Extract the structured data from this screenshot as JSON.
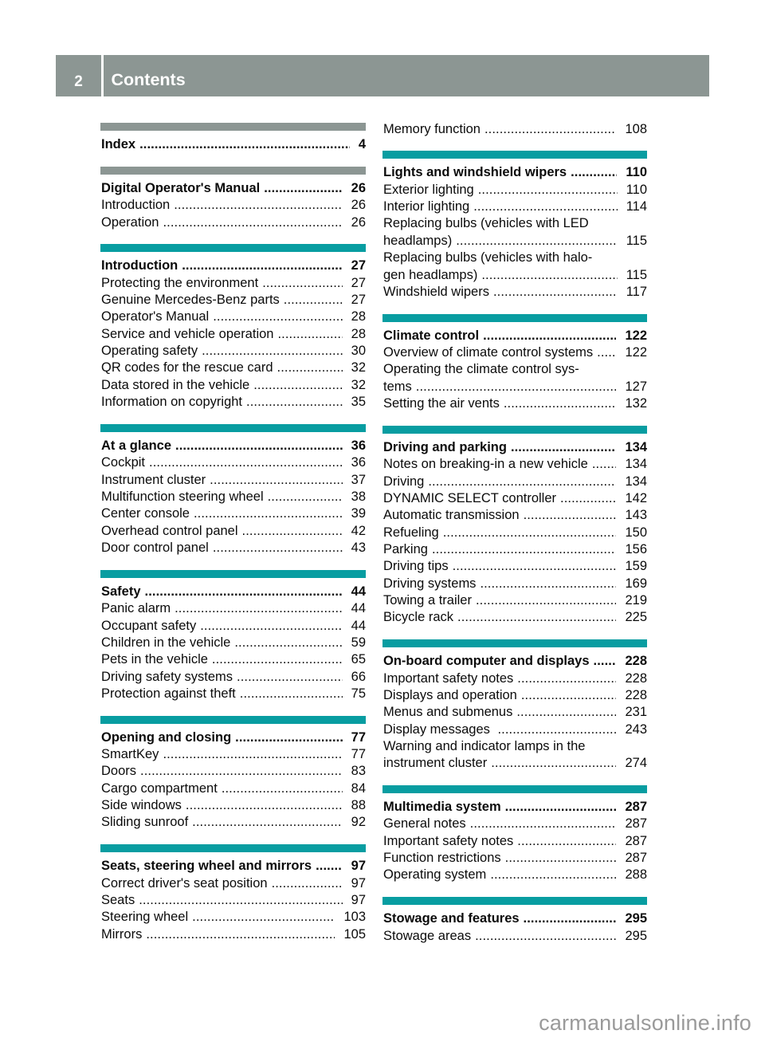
{
  "header": {
    "page_number": "2",
    "title": "Contents"
  },
  "watermark": {
    "text": "carmanualsonline.info"
  },
  "colors": {
    "bar_teal": "#089da1",
    "bar_gray": "#8c9693",
    "header_text": "#ffffff",
    "body_text": "#0b0b0b",
    "watermark_text": "#9a9a9a",
    "page_background": "#ffffff"
  },
  "toc": {
    "left_column": {
      "sections": [
        {
          "bar": "gray",
          "entries": [
            {
              "label": "Index",
              "page": "4",
              "bold": true
            }
          ]
        },
        {
          "bar": "gray",
          "entries": [
            {
              "label": "Digital Operator's Manual",
              "page": "26",
              "bold": true
            },
            {
              "label": "Introduction",
              "page": "26"
            },
            {
              "label": "Operation",
              "page": "26"
            }
          ]
        },
        {
          "bar": "teal",
          "entries": [
            {
              "label": "Introduction",
              "page": "27",
              "bold": true
            },
            {
              "label": "Protecting the environment",
              "page": "27"
            },
            {
              "label": "Genuine Mercedes-Benz parts",
              "page": "27"
            },
            {
              "label": "Operator's Manual",
              "page": "28"
            },
            {
              "label": "Service and vehicle operation",
              "page": "28"
            },
            {
              "label": "Operating safety",
              "page": "30"
            },
            {
              "label": "QR codes for the rescue card",
              "page": "32"
            },
            {
              "label": "Data stored in the vehicle",
              "page": "32"
            },
            {
              "label": "Information on copyright",
              "page": "35"
            }
          ]
        },
        {
          "bar": "teal",
          "entries": [
            {
              "label": "At a glance",
              "page": "36",
              "bold": true
            },
            {
              "label": "Cockpit",
              "page": "36"
            },
            {
              "label": "Instrument cluster",
              "page": "37"
            },
            {
              "label": "Multifunction steering wheel",
              "page": "38"
            },
            {
              "label": "Center console",
              "page": "39"
            },
            {
              "label": "Overhead control panel",
              "page": "42"
            },
            {
              "label": "Door control panel",
              "page": "43"
            }
          ]
        },
        {
          "bar": "teal",
          "entries": [
            {
              "label": "Safety",
              "page": "44",
              "bold": true
            },
            {
              "label": "Panic alarm",
              "page": "44"
            },
            {
              "label": "Occupant safety",
              "page": "44"
            },
            {
              "label": "Children in the vehicle",
              "page": "59"
            },
            {
              "label": "Pets in the vehicle",
              "page": "65"
            },
            {
              "label": "Driving safety systems",
              "page": "66"
            },
            {
              "label": "Protection against theft",
              "page": "75"
            }
          ]
        },
        {
          "bar": "teal",
          "entries": [
            {
              "label": "Opening and closing",
              "page": "77",
              "bold": true
            },
            {
              "label": "SmartKey",
              "page": "77"
            },
            {
              "label": "Doors",
              "page": "83"
            },
            {
              "label": "Cargo compartment",
              "page": "84"
            },
            {
              "label": "Side windows",
              "page": "88"
            },
            {
              "label": "Sliding sunroof",
              "page": "92"
            }
          ]
        },
        {
          "bar": "teal",
          "entries": [
            {
              "label": "Seats, steering wheel and mirrors",
              "page": "97",
              "bold": true
            },
            {
              "label": "Correct driver's seat position",
              "page": "97"
            },
            {
              "label": "Seats",
              "page": "97"
            },
            {
              "label": "Steering wheel",
              "page": "103"
            },
            {
              "label": "Mirrors",
              "page": "105"
            }
          ]
        }
      ]
    },
    "right_column": {
      "sections": [
        {
          "bar": "none",
          "entries": [
            {
              "label": "Memory function",
              "page": "108"
            }
          ]
        },
        {
          "bar": "teal",
          "entries": [
            {
              "label": "Lights and windshield wipers",
              "page": "110",
              "bold": true
            },
            {
              "label": "Exterior lighting",
              "page": "110"
            },
            {
              "label": "Interior lighting",
              "page": "114"
            },
            {
              "label": "Replacing bulbs (vehicles with LED\nheadlamps)",
              "page": "115"
            },
            {
              "label": "Replacing bulbs (vehicles with halo-\ngen headlamps)",
              "page": "115"
            },
            {
              "label": "Windshield wipers",
              "page": "117"
            }
          ]
        },
        {
          "bar": "teal",
          "entries": [
            {
              "label": "Climate control",
              "page": "122",
              "bold": true
            },
            {
              "label": "Overview of climate control systems",
              "page": "122"
            },
            {
              "label": "Operating the climate control sys-\ntems",
              "page": "127"
            },
            {
              "label": "Setting the air vents",
              "page": "132"
            }
          ]
        },
        {
          "bar": "teal",
          "entries": [
            {
              "label": "Driving and parking",
              "page": "134",
              "bold": true
            },
            {
              "label": "Notes on breaking-in a new vehicle",
              "page": "134"
            },
            {
              "label": "Driving",
              "page": "134"
            },
            {
              "label": "DYNAMIC SELECT controller",
              "page": "142"
            },
            {
              "label": "Automatic transmission",
              "page": "143"
            },
            {
              "label": "Refueling",
              "page": "150"
            },
            {
              "label": "Parking",
              "page": "156"
            },
            {
              "label": "Driving tips",
              "page": "159"
            },
            {
              "label": "Driving systems",
              "page": "169"
            },
            {
              "label": "Towing a trailer",
              "page": "219"
            },
            {
              "label": "Bicycle rack",
              "page": "225"
            }
          ]
        },
        {
          "bar": "teal",
          "entries": [
            {
              "label": "On-board computer and displays",
              "page": "228",
              "bold": true
            },
            {
              "label": "Important safety notes",
              "page": "228"
            },
            {
              "label": "Displays and operation",
              "page": "228"
            },
            {
              "label": "Menus and submenus",
              "page": "231"
            },
            {
              "label": "Display messages ",
              "page": "243"
            },
            {
              "label": "Warning and indicator lamps in the\ninstrument cluster",
              "page": "274"
            }
          ]
        },
        {
          "bar": "teal",
          "entries": [
            {
              "label": "Multimedia system",
              "page": "287",
              "bold": true
            },
            {
              "label": "General notes",
              "page": "287"
            },
            {
              "label": "Important safety notes",
              "page": "287"
            },
            {
              "label": "Function restrictions",
              "page": "287"
            },
            {
              "label": "Operating system",
              "page": "288"
            }
          ]
        },
        {
          "bar": "teal",
          "entries": [
            {
              "label": "Stowage and features",
              "page": "295",
              "bold": true
            },
            {
              "label": "Stowage areas",
              "page": "295"
            }
          ]
        }
      ]
    }
  }
}
